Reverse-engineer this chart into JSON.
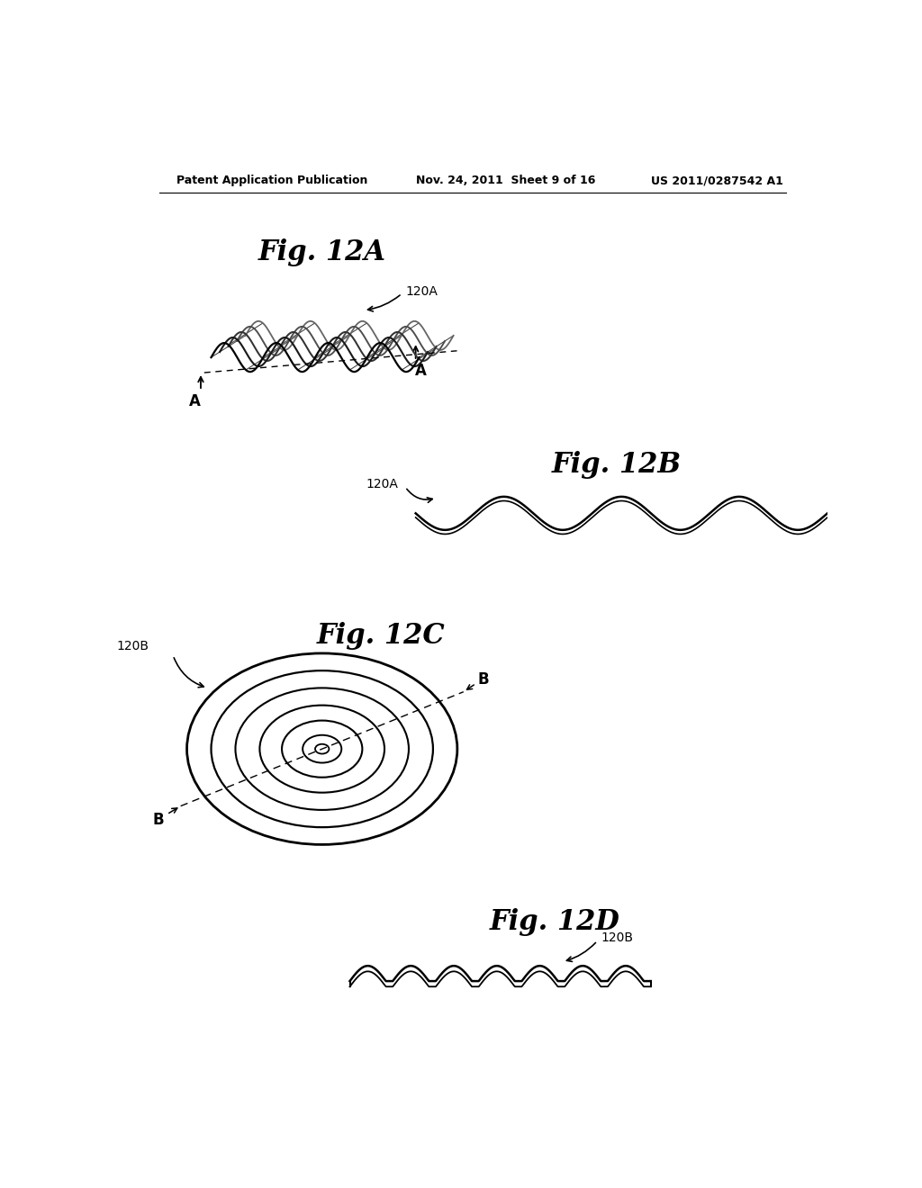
{
  "bg_color": "#ffffff",
  "text_color": "#000000",
  "header_left": "Patent Application Publication",
  "header_mid": "Nov. 24, 2011  Sheet 9 of 16",
  "header_right": "US 2011/0287542 A1",
  "fig12A_title": "Fig. 12A",
  "fig12B_title": "Fig. 12B",
  "fig12C_title": "Fig. 12C",
  "fig12D_title": "Fig. 12D",
  "label_120A": "120A",
  "label_120B": "120B",
  "label_A": "A",
  "label_B": "B"
}
